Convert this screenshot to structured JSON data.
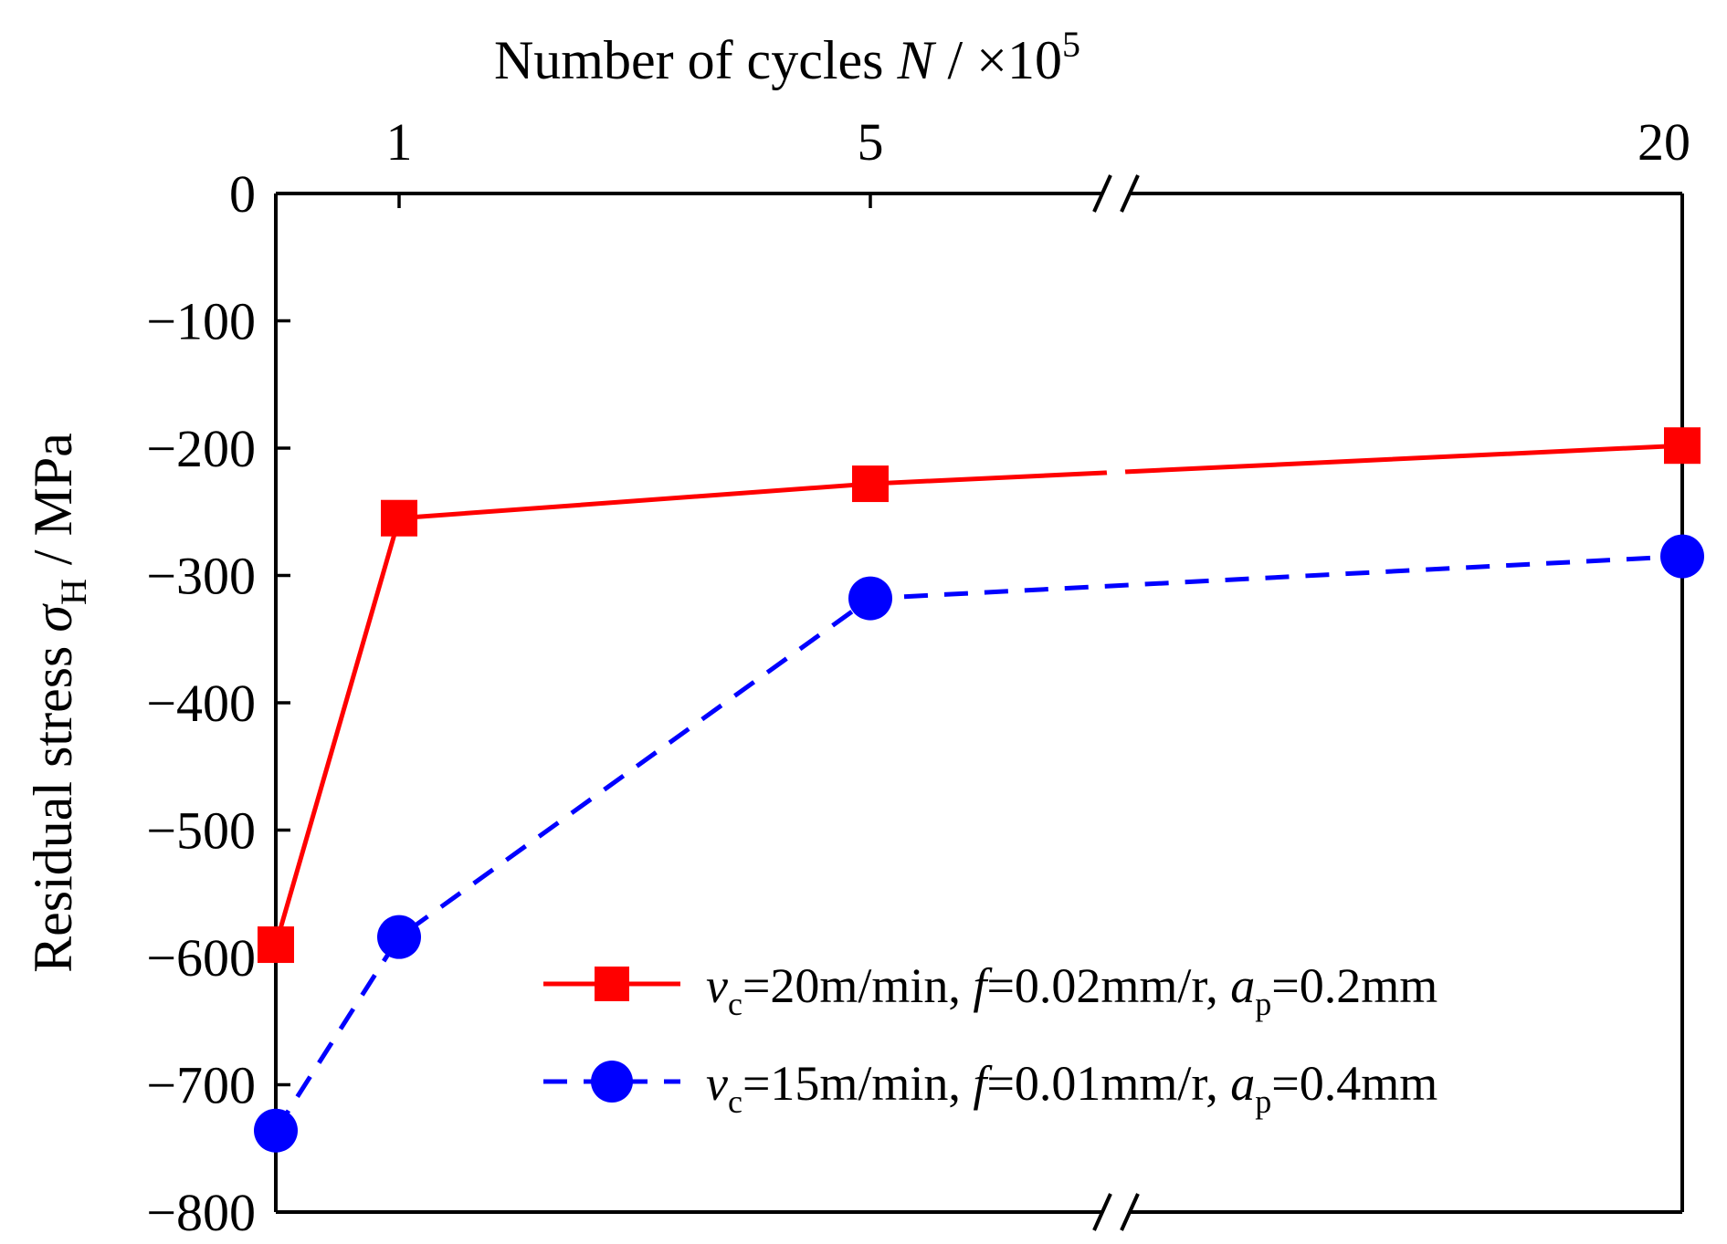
{
  "chart_data": {
    "type": "line",
    "title": "",
    "xlabel": {
      "main": "Number of cycles ",
      "italic": "N",
      "unit": " / ×10",
      "sup": "5"
    },
    "ylabel": {
      "main": "Residual stress ",
      "symbol": "σ",
      "sub": "H",
      "unit": " / MPa"
    },
    "x_tick_labels": [
      "1",
      "5",
      "20"
    ],
    "x_axis_position": "top",
    "x_axis_break": "between 5 and 20",
    "ylim": [
      -800,
      0
    ],
    "y_ticks": [
      0,
      -100,
      -200,
      -300,
      -400,
      -500,
      -600,
      -700,
      -800
    ],
    "y_tick_labels": [
      "0",
      "−100",
      "−200",
      "−300",
      "−400",
      "−500",
      "−600",
      "−700",
      "−800"
    ],
    "grid": false,
    "legend_position": "bottom-right",
    "series": [
      {
        "name": "vc=20m/min, f=0.02mm/r, ap=0.2mm",
        "legend": {
          "v": "v",
          "v_sub": "c",
          "v_val": "=20m/min, ",
          "f": "f",
          "f_val": "=0.02mm/r, ",
          "a": "a",
          "a_sub": "p",
          "a_val": "=0.2mm"
        },
        "color": "#ff0000",
        "line_style": "solid",
        "marker": "square",
        "x": [
          0,
          1,
          5,
          20
        ],
        "values": [
          -590,
          -255,
          -228,
          -198
        ]
      },
      {
        "name": "vc=15m/min, f=0.01mm/r, ap=0.4mm",
        "legend": {
          "v": "v",
          "v_sub": "c",
          "v_val": "=15m/min, ",
          "f": "f",
          "f_val": "=0.01mm/r, ",
          "a": "a",
          "a_sub": "p",
          "a_val": "=0.4mm"
        },
        "color": "#0000ff",
        "line_style": "dashed",
        "marker": "circle",
        "x": [
          0,
          1,
          5,
          20
        ],
        "values": [
          -736,
          -584,
          -318,
          -285
        ]
      }
    ]
  }
}
